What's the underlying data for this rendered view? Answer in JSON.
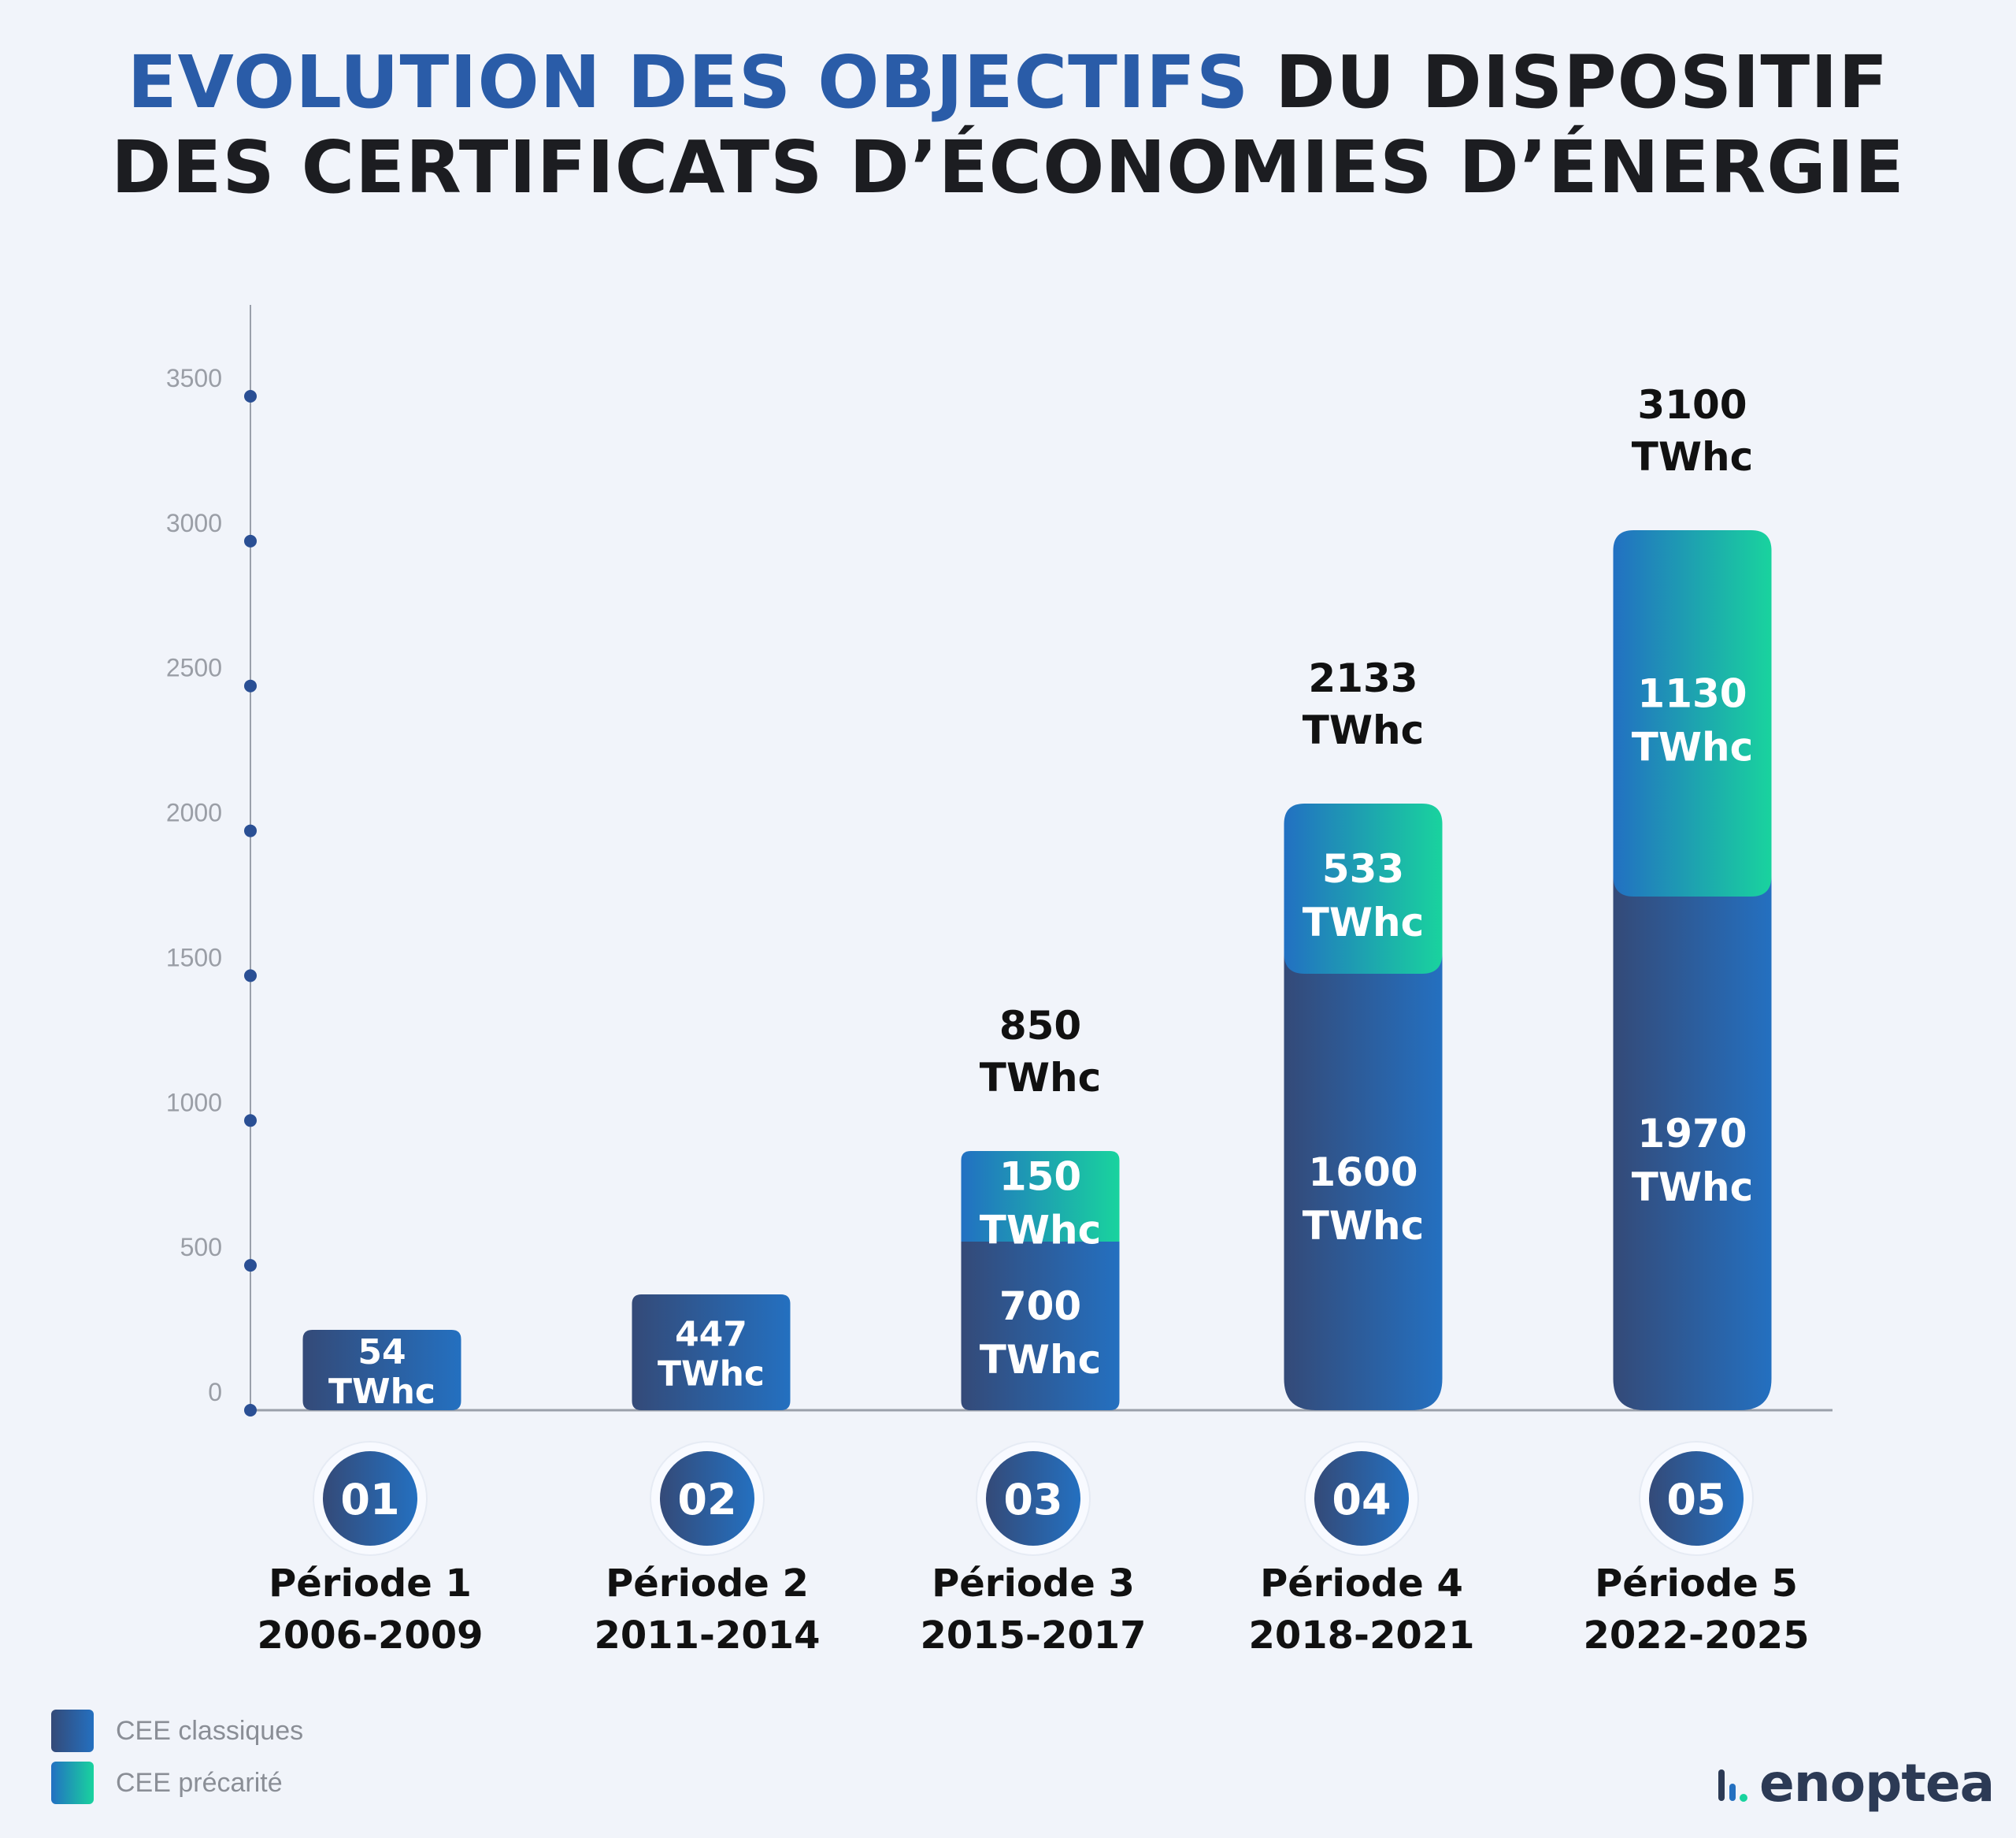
{
  "title": {
    "line1_highlight": "EVOLUTION DES OBJECTIFS",
    "line1_rest": " DU DISPOSITIF",
    "line2": "DES CERTIFICATS D’ÉCONOMIES D’ÉNERGIE"
  },
  "colors": {
    "title_highlight": "#2a5ca8",
    "classiques_gradient": [
      "#344a78",
      "#2470c0"
    ],
    "precarite_gradient": [
      "#2270c2",
      "#19d39e"
    ],
    "background": "#f1f4fa"
  },
  "chart_data": {
    "type": "bar",
    "stacked": true,
    "unit": "TWhc",
    "categories": [
      "Période 1 2006-2009",
      "Période 2 2011-2014",
      "Période 3 2015-2017",
      "Période 4 2018-2021",
      "Période 5 2022-2025"
    ],
    "periods": [
      {
        "number": "01",
        "label": "Période 1",
        "years": "2006-2009"
      },
      {
        "number": "02",
        "label": "Période 2",
        "years": "2011-2014"
      },
      {
        "number": "03",
        "label": "Période 3",
        "years": "2015-2017"
      },
      {
        "number": "04",
        "label": "Période 4",
        "years": "2018-2021"
      },
      {
        "number": "05",
        "label": "Période 5",
        "years": "2022-2025"
      }
    ],
    "series": [
      {
        "name": "CEE classiques",
        "values": [
          54,
          447,
          700,
          1600,
          1970
        ]
      },
      {
        "name": "CEE précarité",
        "values": [
          null,
          null,
          150,
          533,
          1130
        ]
      }
    ],
    "totals": [
      null,
      null,
      850,
      2133,
      3100
    ],
    "yticks": [
      "0",
      "500",
      "1000",
      "1500",
      "2000",
      "2500",
      "3000",
      "3500"
    ],
    "ylim": [
      0,
      3500
    ],
    "legend_position": "bottom-left",
    "grid": false
  },
  "legend": [
    {
      "label": "CEE classiques"
    },
    {
      "label": "CEE précarité"
    }
  ],
  "logo": {
    "text": "enoptea"
  }
}
